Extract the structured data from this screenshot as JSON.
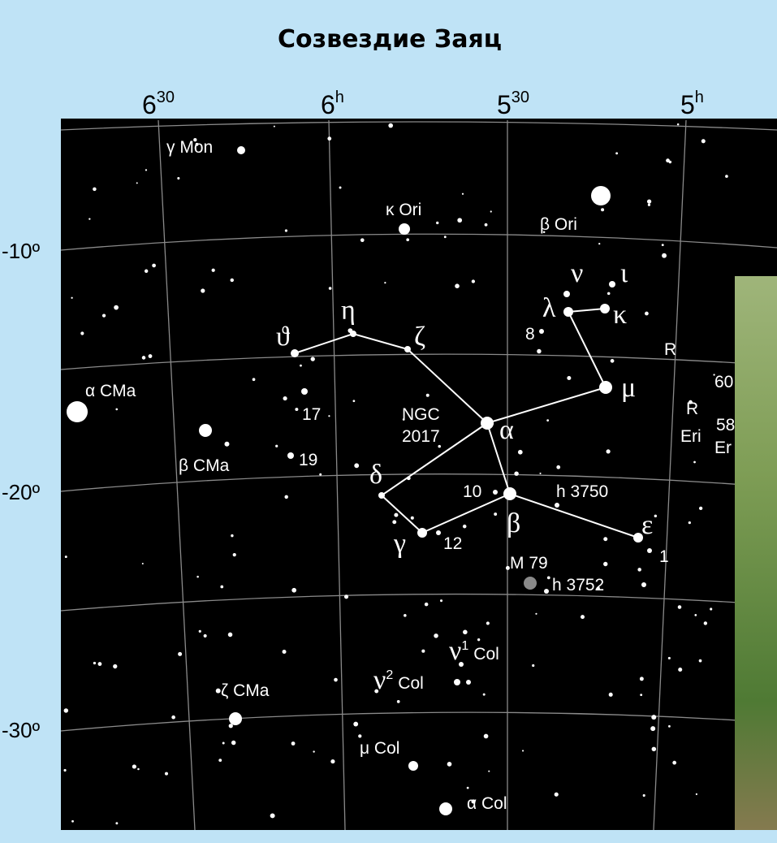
{
  "title": "Созвездие Заяц",
  "ra_labels": [
    {
      "main": "6",
      "sup": "30"
    },
    {
      "main": "6",
      "sup": "h"
    },
    {
      "main": "5",
      "sup": "30"
    },
    {
      "main": "5",
      "sup": "h"
    }
  ],
  "dec_labels": [
    "-10º",
    "-20º",
    "-30º"
  ],
  "labels": [
    "γ Mon",
    "κ Ori",
    "β Ori",
    "ν",
    "ι",
    "λ",
    "κ",
    "8",
    "μ",
    "R",
    "ϑ",
    "η",
    "ζ",
    "α CMa",
    "17",
    "19",
    "NGC",
    "2017",
    "α",
    "β CMa",
    "δ",
    "10",
    "β",
    "h 3750",
    "ε",
    "1",
    "γ",
    "12",
    "M 79",
    "h 3752",
    "ζ CMa",
    "μ Col",
    "α Col",
    "60",
    "R",
    "Eri",
    "58",
    "Er"
  ],
  "sup_labels": [
    {
      "main": "ν",
      "sup": "1",
      "rest": "Col"
    },
    {
      "main": "ν",
      "sup": "2",
      "rest": "Col"
    }
  ]
}
